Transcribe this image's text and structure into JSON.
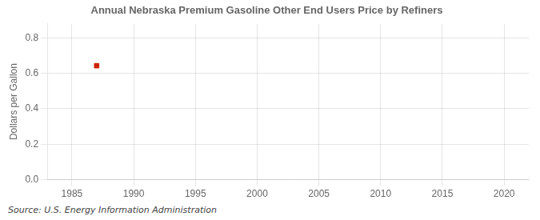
{
  "chart_data": {
    "type": "scatter",
    "title": "Annual Nebraska Premium Gasoline Other End Users Price by Refiners",
    "y_label": "Dollars per Gallon",
    "source": "Source: U.S. Energy Information Administration",
    "x": [
      1987
    ],
    "values": [
      0.643
    ],
    "color": "#CC2200",
    "marker": "square",
    "xlim": [
      1983,
      2022
    ],
    "ylim": [
      0.0,
      0.88
    ],
    "xticks": [
      1985,
      1990,
      1995,
      2000,
      2005,
      2010,
      2015,
      2020
    ],
    "yticks": [
      {
        "value": 0.0,
        "label": "0.0"
      },
      0.2,
      0.4,
      0.6,
      0.8
    ],
    "grid": true
  }
}
